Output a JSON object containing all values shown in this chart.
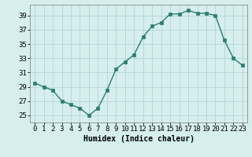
{
  "x": [
    0,
    1,
    2,
    3,
    4,
    5,
    6,
    7,
    8,
    9,
    10,
    11,
    12,
    13,
    14,
    15,
    16,
    17,
    18,
    19,
    20,
    21,
    22,
    23
  ],
  "y": [
    29.5,
    29.0,
    28.5,
    27.0,
    26.5,
    26.0,
    25.0,
    26.0,
    28.5,
    31.5,
    32.5,
    33.5,
    36.0,
    37.5,
    38.0,
    39.2,
    39.2,
    39.7,
    39.3,
    39.3,
    39.0,
    35.5,
    33.0,
    32.0
  ],
  "line_color": "#2e7d6e",
  "marker_color": "#2e7d6e",
  "bg_color": "#d6eeee",
  "grid_color": "#b8d8d8",
  "xlabel": "Humidex (Indice chaleur)",
  "ylim": [
    24,
    40.5
  ],
  "xlim": [
    -0.5,
    23.5
  ],
  "yticks": [
    25,
    27,
    29,
    31,
    33,
    35,
    37,
    39
  ],
  "xticks": [
    0,
    1,
    2,
    3,
    4,
    5,
    6,
    7,
    8,
    9,
    10,
    11,
    12,
    13,
    14,
    15,
    16,
    17,
    18,
    19,
    20,
    21,
    22,
    23
  ],
  "xlabel_fontsize": 7,
  "tick_fontsize": 6.5
}
